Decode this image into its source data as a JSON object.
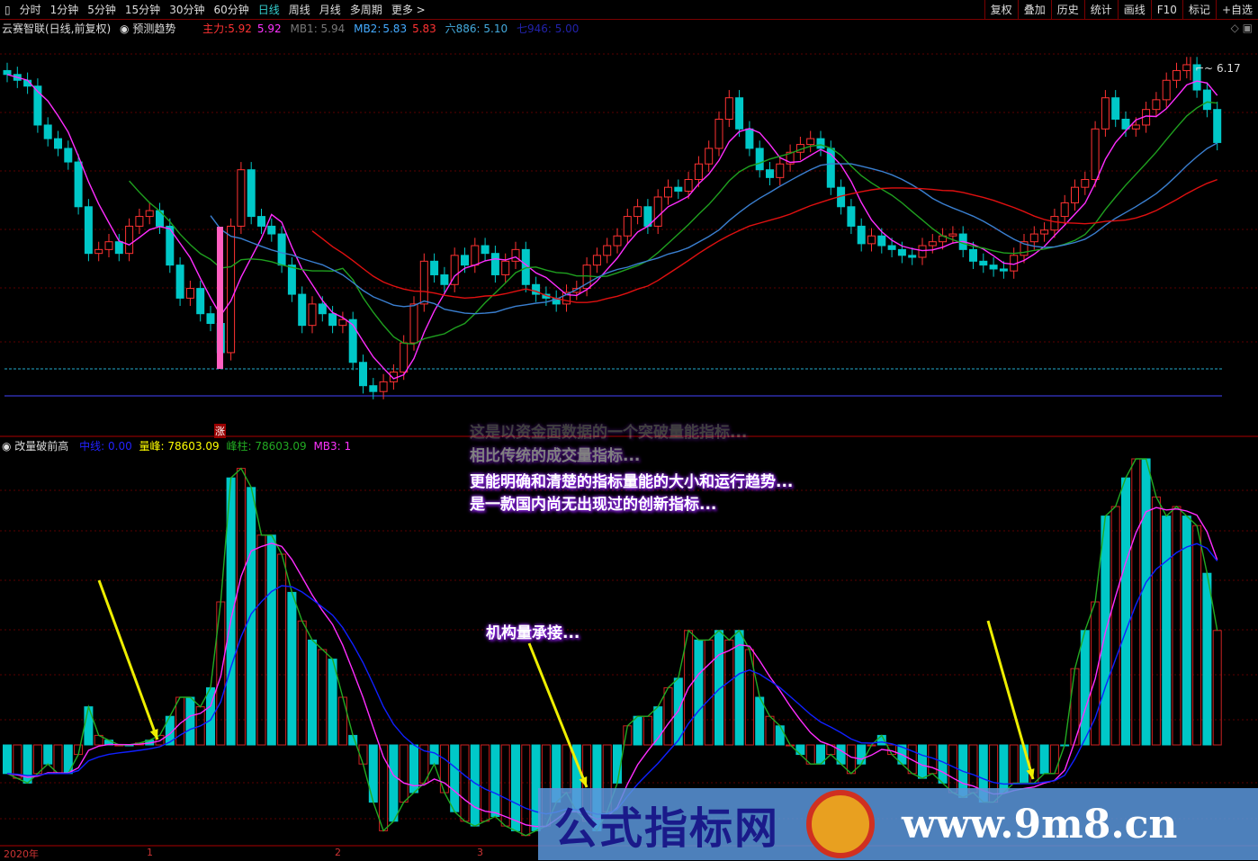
{
  "toolbar": {
    "periods": [
      "分时",
      "1分钟",
      "5分钟",
      "15分钟",
      "30分钟",
      "60分钟",
      "日线",
      "周线",
      "月线",
      "多周期",
      "更多 >"
    ],
    "active": "日线",
    "right": [
      "复权",
      "叠加",
      "历史",
      "统计",
      "画线",
      "F10",
      "标记",
      "+自选"
    ]
  },
  "main_header": {
    "title": "云赛智联(日线,前复权)",
    "predict": "预测趋势",
    "zl_label": "主力:",
    "zl1": "5.92",
    "zl2": "5.92",
    "mb1": "MB1: 5.94",
    "mb2_label": "MB2:",
    "mb2a": "5.83",
    "mb2b": "5.83",
    "six": "六886: 5.10",
    "seven": "七946: 5.00"
  },
  "sub_header": {
    "title": "改量破前高",
    "zx": "中线: 0.00",
    "lf": "量峰: 78603.09",
    "fz": "峰柱: 78603.09",
    "mb3": "MB3: 1"
  },
  "high_label": "6.17",
  "zhang": "涨",
  "notes": {
    "l1": "这是以资金面数据的一个突破量能指标...",
    "l2": "相比传统的成交量指标...",
    "l3": "更能明确和清楚的指标量能的大小和运行趋势...",
    "l4": "是一款国内尚无出现过的创新指标...",
    "l5": "机构量承接..."
  },
  "xaxis": [
    "2020年",
    "1",
    "2",
    "3"
  ],
  "watermark": {
    "text": "公式指标网",
    "url": "www.9m8.cn"
  },
  "colors": {
    "up": "#ff3232",
    "down": "#00c8c8",
    "ma_green": "#1fa01f",
    "ma_blue": "#3a7fd0",
    "ma_magenta": "#ff2dff",
    "ma_red": "#e01010"
  },
  "chart_data": [
    {
      "type": "candlestick",
      "title": "云赛智联(日线,前复权)",
      "close": [
        6.08,
        6.05,
        6.02,
        5.82,
        5.75,
        5.7,
        5.63,
        5.4,
        5.16,
        5.18,
        5.22,
        5.16,
        5.3,
        5.35,
        5.38,
        5.3,
        5.1,
        4.93,
        4.98,
        4.85,
        4.8,
        4.65,
        5.3,
        5.59,
        5.35,
        5.3,
        5.26,
        5.1,
        4.95,
        4.79,
        4.9,
        4.85,
        4.79,
        4.82,
        4.6,
        4.48,
        4.45,
        4.5,
        4.55,
        4.7,
        4.9,
        5.12,
        5.05,
        5.0,
        5.15,
        5.1,
        5.2,
        5.16,
        5.05,
        5.12,
        5.18,
        5.0,
        4.95,
        4.93,
        4.9,
        4.96,
        4.98,
        5.1,
        5.15,
        5.2,
        5.25,
        5.35,
        5.4,
        5.3,
        5.45,
        5.5,
        5.48,
        5.54,
        5.62,
        5.7,
        5.85,
        5.96,
        5.8,
        5.7,
        5.59,
        5.55,
        5.62,
        5.68,
        5.72,
        5.75,
        5.7,
        5.5,
        5.4,
        5.3,
        5.21,
        5.25,
        5.2,
        5.18,
        5.15,
        5.14,
        5.2,
        5.22,
        5.25,
        5.26,
        5.18,
        5.12,
        5.1,
        5.08,
        5.07,
        5.15,
        5.22,
        5.26,
        5.28,
        5.35,
        5.42,
        5.5,
        5.54,
        5.8,
        5.96,
        5.85,
        5.8,
        5.82,
        5.9,
        5.95,
        6.05,
        6.1,
        6.13,
        6.0,
        5.9,
        5.73
      ],
      "max_high": 6.17,
      "ylim": [
        4.4,
        6.25
      ]
    },
    {
      "type": "bar",
      "title": "改量破前高",
      "values": [
        -0.3,
        -0.35,
        -0.4,
        -0.3,
        -0.2,
        -0.3,
        -0.3,
        -0.1,
        0.4,
        0.1,
        0.05,
        0,
        0,
        0.02,
        0.05,
        0.1,
        0.3,
        0.5,
        0.5,
        0.4,
        0.6,
        1.5,
        2.8,
        2.9,
        2.7,
        2.2,
        2.2,
        2.0,
        1.6,
        1.3,
        1.1,
        1.0,
        0.9,
        0.5,
        0.1,
        -0.2,
        -0.6,
        -0.9,
        -0.8,
        -0.6,
        -0.5,
        -0.4,
        -0.2,
        -0.5,
        -0.7,
        -0.8,
        -0.85,
        -0.8,
        -0.75,
        -0.85,
        -0.9,
        -0.95,
        -0.9,
        -0.85,
        -0.6,
        -0.5,
        -0.7,
        -0.8,
        -0.9,
        -0.7,
        -0.4,
        0.2,
        0.3,
        0.3,
        0.4,
        0.6,
        0.7,
        1.2,
        1.1,
        1.1,
        1.2,
        1.1,
        1.2,
        1.0,
        0.5,
        0.3,
        0.2,
        0,
        -0.1,
        -0.2,
        -0.2,
        -0.1,
        -0.2,
        -0.3,
        -0.2,
        0,
        0.1,
        -0.1,
        -0.2,
        -0.3,
        -0.35,
        -0.3,
        -0.4,
        -0.5,
        -0.55,
        -0.5,
        -0.6,
        -0.6,
        -0.5,
        -0.4,
        -0.4,
        -0.4,
        -0.3,
        -0.3,
        0,
        0.8,
        1.2,
        1.5,
        2.4,
        2.5,
        2.8,
        3.0,
        3.0,
        2.6,
        2.4,
        2.5,
        2.4,
        2.3,
        1.8,
        1.2
      ],
      "ylim": [
        -1.1,
        3.0
      ]
    }
  ]
}
